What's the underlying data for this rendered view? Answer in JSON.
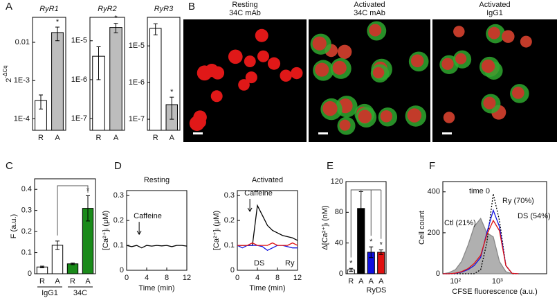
{
  "panel_labels": [
    "A",
    "B",
    "C",
    "D",
    "E",
    "F"
  ],
  "images": [
    {
      "title": [
        "Resting",
        "34C mAb"
      ]
    },
    {
      "title": [
        "Activated",
        "34C mAb"
      ]
    },
    {
      "title": [
        "Activated",
        "IgG1"
      ]
    }
  ],
  "chart_data": [
    {
      "type": "bar",
      "title": "RyR1",
      "log_y": true,
      "ylabel": {
        "base": "2",
        "exp": "-ΔCq"
      },
      "categories": [
        "R",
        "A"
      ],
      "values": [
        0.0003,
        0.018
      ],
      "errors": [
        0.00012,
        0.007
      ],
      "colors": [
        "#ffffff",
        "#bdbdbd"
      ],
      "stars": [
        null,
        "*"
      ],
      "ylim": [
        5e-05,
        0.045
      ],
      "yticks": [
        {
          "value": 0.0001,
          "label": "1E-4"
        },
        {
          "value": 0.001,
          "label": "1E-3"
        },
        0.01
      ]
    },
    {
      "type": "bar",
      "title": "RyR2",
      "log_y": true,
      "categories": [
        "R",
        "A"
      ],
      "values": [
        4e-06,
        2.2e-05
      ],
      "errors": [
        3e-06,
        6e-06
      ],
      "colors": [
        "#ffffff",
        "#bdbdbd"
      ],
      "stars": [
        null,
        "*"
      ],
      "ylim": [
        5e-08,
        4e-05
      ],
      "yticks": [
        {
          "value": 1e-07,
          "label": "1E-7"
        },
        {
          "value": 1e-06,
          "label": "1E-6"
        },
        {
          "value": 1e-05,
          "label": "1E-5"
        }
      ]
    },
    {
      "type": "bar",
      "title": "RyR3",
      "log_y": true,
      "categories": [
        "R",
        "A"
      ],
      "values": [
        3e-05,
        2.5e-07
      ],
      "errors": [
        1e-05,
        1.5e-07
      ],
      "colors": [
        "#ffffff",
        "#bdbdbd"
      ],
      "stars": [
        null,
        "*"
      ],
      "ylim": [
        5e-08,
        6e-05
      ],
      "yticks": [
        {
          "value": 1e-07,
          "label": "1E-7"
        },
        {
          "value": 1e-06,
          "label": "1E-6"
        },
        {
          "value": 1e-05,
          "label": "1E-5"
        }
      ]
    },
    {
      "type": "bar",
      "ylabel": "F (a.u.)",
      "groups": [
        "IgG1",
        "34C"
      ],
      "categories": [
        "R",
        "A",
        "R",
        "A"
      ],
      "values": [
        0.032,
        0.135,
        0.047,
        0.31
      ],
      "errors": [
        0.004,
        0.02,
        0.004,
        0.06
      ],
      "colors": [
        "#ffffff",
        "#ffffff",
        "#1a8a1a",
        "#1a8a1a"
      ],
      "stars": [
        null,
        null,
        null,
        "*"
      ],
      "ylim": [
        0,
        0.45
      ],
      "yticks": [
        0,
        0.1,
        0.2,
        0.3,
        0.4
      ]
    },
    {
      "type": "line",
      "title": "Resting",
      "xlabel": "Time (min)",
      "ylabel": "[Ca²⁺]ᵢ (μM)",
      "annotation": "Caffeine",
      "x": [
        0,
        1,
        2,
        3,
        4,
        5,
        6,
        7,
        8,
        9,
        10,
        11,
        12
      ],
      "series": [
        {
          "color": "#000000",
          "values": [
            0.1,
            0.095,
            0.1,
            0.09,
            0.1,
            0.097,
            0.1,
            0.098,
            0.1,
            0.095,
            0.1,
            0.1,
            0.097
          ]
        }
      ],
      "xlim": [
        0,
        12
      ],
      "xticks": [
        0,
        4,
        8,
        12
      ],
      "ylim": [
        0,
        0.32
      ],
      "yticks": [
        0,
        0.1,
        0.2,
        0.3
      ]
    },
    {
      "type": "line",
      "title": "Activated",
      "xlabel": "Time (min)",
      "ylabel": "[Ca²⁺]ᵢ (μM)",
      "annotation": "Caffeine",
      "x": [
        0,
        1,
        2,
        3,
        4,
        5,
        6,
        7,
        8,
        9,
        10,
        11,
        12
      ],
      "series": [
        {
          "color": "#000000",
          "values": [
            0.1,
            0.1,
            0.1,
            0.1,
            0.26,
            0.22,
            0.18,
            0.16,
            0.15,
            0.14,
            0.135,
            0.13,
            0.12
          ]
        },
        {
          "name": "Ry",
          "color": "#1010e0",
          "values": [
            0.1,
            0.09,
            0.1,
            0.1,
            0.1,
            0.095,
            0.08,
            0.09,
            0.1,
            0.1,
            0.095,
            0.09,
            0.09
          ]
        },
        {
          "name": "DS",
          "color": "#e01010",
          "values": [
            0.1,
            0.1,
            0.1,
            0.11,
            0.1,
            0.1,
            0.1,
            0.11,
            0.1,
            0.1,
            0.1,
            0.11,
            0.1
          ]
        }
      ],
      "xlim": [
        0,
        12
      ],
      "xticks": [
        0,
        4,
        8,
        12
      ],
      "ylim": [
        0,
        0.32
      ],
      "yticks": [
        0,
        0.1,
        0.2,
        0.3
      ]
    },
    {
      "type": "bar",
      "ylabel": "Δ[Ca²⁺]ᵢ (nM)",
      "categories": [
        "R",
        "A",
        "A",
        "A"
      ],
      "sub_labels": [
        null,
        null,
        "Ry",
        "DS"
      ],
      "values": [
        5,
        85,
        28,
        28
      ],
      "errors": [
        2,
        22,
        7,
        3
      ],
      "colors": [
        "#ffffff",
        "#000000",
        "#1010e0",
        "#e01010"
      ],
      "stars": [
        "*",
        null,
        "*",
        "*"
      ],
      "ylim": [
        0,
        120
      ],
      "yticks": [
        0,
        40,
        80,
        120
      ]
    },
    {
      "type": "line",
      "log_x": true,
      "xlabel": "CFSE fluorescence (a.u.)",
      "ylabel": "Cell count",
      "x": [
        50,
        70,
        100,
        140,
        200,
        280,
        400,
        560,
        800,
        1120,
        1600,
        2240,
        3200
      ],
      "series": [
        {
          "name": "Ctl (21%)",
          "color": "#b0b0b0",
          "fill": true,
          "values": [
            0,
            5,
            20,
            60,
            140,
            230,
            270,
            200,
            180,
            60,
            10,
            0,
            0
          ]
        },
        {
          "name": "time 0",
          "color": "#000000",
          "dotted": true,
          "values": [
            0,
            0,
            0,
            0,
            0,
            0,
            20,
            150,
            390,
            260,
            40,
            0,
            0
          ]
        },
        {
          "name": "Ry (70%)",
          "color": "#1010e0",
          "values": [
            0,
            0,
            2,
            8,
            20,
            40,
            80,
            200,
            310,
            230,
            40,
            2,
            0
          ]
        },
        {
          "name": "DS (54%)",
          "color": "#e01010",
          "values": [
            0,
            0,
            3,
            10,
            25,
            50,
            90,
            190,
            260,
            210,
            40,
            2,
            0
          ]
        }
      ],
      "xlim": [
        50,
        15000
      ],
      "xticks": [
        {
          "value": 100,
          "label": "10²"
        },
        {
          "value": 1000,
          "label": "10³"
        }
      ],
      "ylim": [
        0,
        450
      ],
      "yticks": [
        0,
        200,
        400
      ]
    }
  ]
}
